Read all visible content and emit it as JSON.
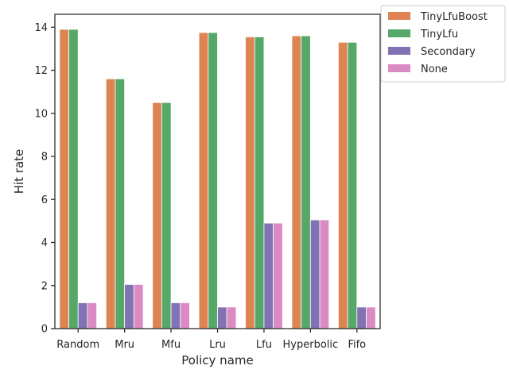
{
  "chart_data": {
    "type": "bar",
    "xlabel": "Policy name",
    "ylabel": "Hit rate",
    "ylim": [
      0,
      14.6
    ],
    "yticks": [
      0,
      2,
      4,
      6,
      8,
      10,
      12,
      14
    ],
    "grid": false,
    "legend_position": "outside-top-right",
    "categories": [
      "Random",
      "Mru",
      "Mfu",
      "Lru",
      "Lfu",
      "Hyperbolic",
      "Fifo"
    ],
    "series": [
      {
        "name": "TinyLfuBoost",
        "color": "#dd8452",
        "values": [
          13.9,
          11.6,
          10.5,
          13.75,
          13.55,
          13.6,
          13.3
        ]
      },
      {
        "name": "TinyLfu",
        "color": "#55a868",
        "values": [
          13.9,
          11.6,
          10.5,
          13.75,
          13.55,
          13.6,
          13.3
        ]
      },
      {
        "name": "Secondary",
        "color": "#8172b3",
        "values": [
          1.2,
          2.05,
          1.2,
          1.0,
          4.9,
          5.05,
          1.0
        ]
      },
      {
        "name": "None",
        "color": "#da8bc3",
        "values": [
          1.2,
          2.05,
          1.2,
          1.0,
          4.9,
          5.05,
          1.0
        ]
      }
    ]
  }
}
